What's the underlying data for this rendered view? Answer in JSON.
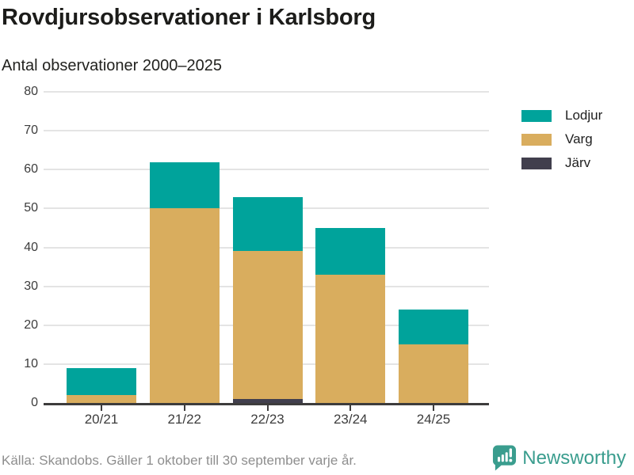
{
  "header": {
    "title": "Rovdjursobservationer i Karlsborg",
    "subtitle": "Antal observationer 2000–2025"
  },
  "chart_data": {
    "type": "bar",
    "stacked": true,
    "title": "Rovdjursobservationer i Karlsborg",
    "subtitle": "Antal observationer 2000–2025",
    "categories": [
      "20/21",
      "21/22",
      "22/23",
      "23/24",
      "24/25"
    ],
    "series": [
      {
        "name": "Lodjur",
        "color": "#00a39b",
        "values": [
          7,
          12,
          14,
          12,
          9
        ]
      },
      {
        "name": "Varg",
        "color": "#d9ad5e",
        "values": [
          2,
          50,
          38,
          33,
          15
        ]
      },
      {
        "name": "Järv",
        "color": "#413f4d",
        "values": [
          0,
          0,
          1,
          0,
          0
        ]
      }
    ],
    "stack_order_bottom_to_top": [
      "Järv",
      "Varg",
      "Lodjur"
    ],
    "totals": [
      9,
      62,
      53,
      45,
      24
    ],
    "xlabel": "",
    "ylabel": "",
    "ylim": [
      0,
      80
    ],
    "yticks": [
      0,
      10,
      20,
      30,
      40,
      50,
      60,
      70,
      80
    ],
    "grid": true,
    "legend_position": "right"
  },
  "legend": {
    "items": [
      {
        "label": "Lodjur",
        "color": "#00a39b"
      },
      {
        "label": "Varg",
        "color": "#d9ad5e"
      },
      {
        "label": "Järv",
        "color": "#413f4d"
      }
    ]
  },
  "footer": {
    "source": "Källa: Skandobs. Gäller 1 oktober till 30 september varje år.",
    "brand": "Newsworthy",
    "brand_color": "#3a9d8e"
  }
}
